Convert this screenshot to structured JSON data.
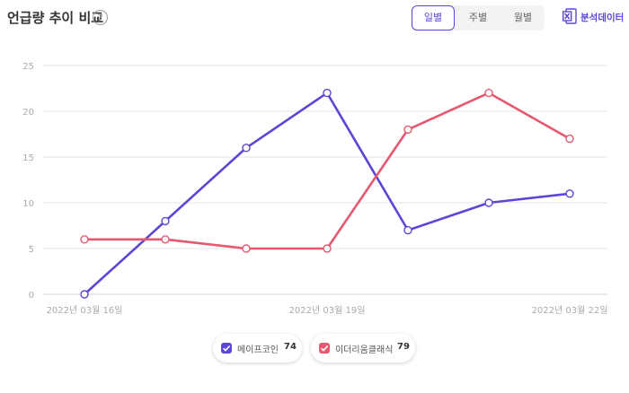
{
  "header": {
    "title": "언급량 추이 비교",
    "help_symbol": "?",
    "period_tabs": [
      {
        "label": "일별",
        "active": true
      },
      {
        "label": "주별",
        "active": false
      },
      {
        "label": "월별",
        "active": false
      }
    ],
    "export_label": "분석데이터",
    "export_icon": "excel-icon"
  },
  "colors": {
    "series_a": "#5a47d8",
    "series_b": "#e5586f",
    "grid": "#e6e6e6",
    "accent": "#5a47d8"
  },
  "chart_data": {
    "type": "line",
    "x": [
      "2022년 03월 16일",
      "",
      "",
      "2022년 03월 19일",
      "",
      "",
      "2022년 03월 22일"
    ],
    "x_tick_labels": [
      {
        "index": 0,
        "label": "2022년 03월 16일"
      },
      {
        "index": 3,
        "label": "2022년 03월 19일"
      },
      {
        "index": 6,
        "label": "2022년 03월 22일"
      }
    ],
    "yticks": [
      0,
      5,
      10,
      15,
      20,
      25
    ],
    "ylim": [
      0,
      25
    ],
    "grid": true,
    "legend_position": "bottom",
    "series": [
      {
        "name": "메이프코인",
        "total": "74",
        "values": [
          0,
          8,
          16,
          22,
          7,
          10,
          11
        ]
      },
      {
        "name": "이더리움클래식",
        "total": "79",
        "values": [
          6,
          6,
          5,
          5,
          18,
          22,
          17
        ]
      }
    ]
  }
}
